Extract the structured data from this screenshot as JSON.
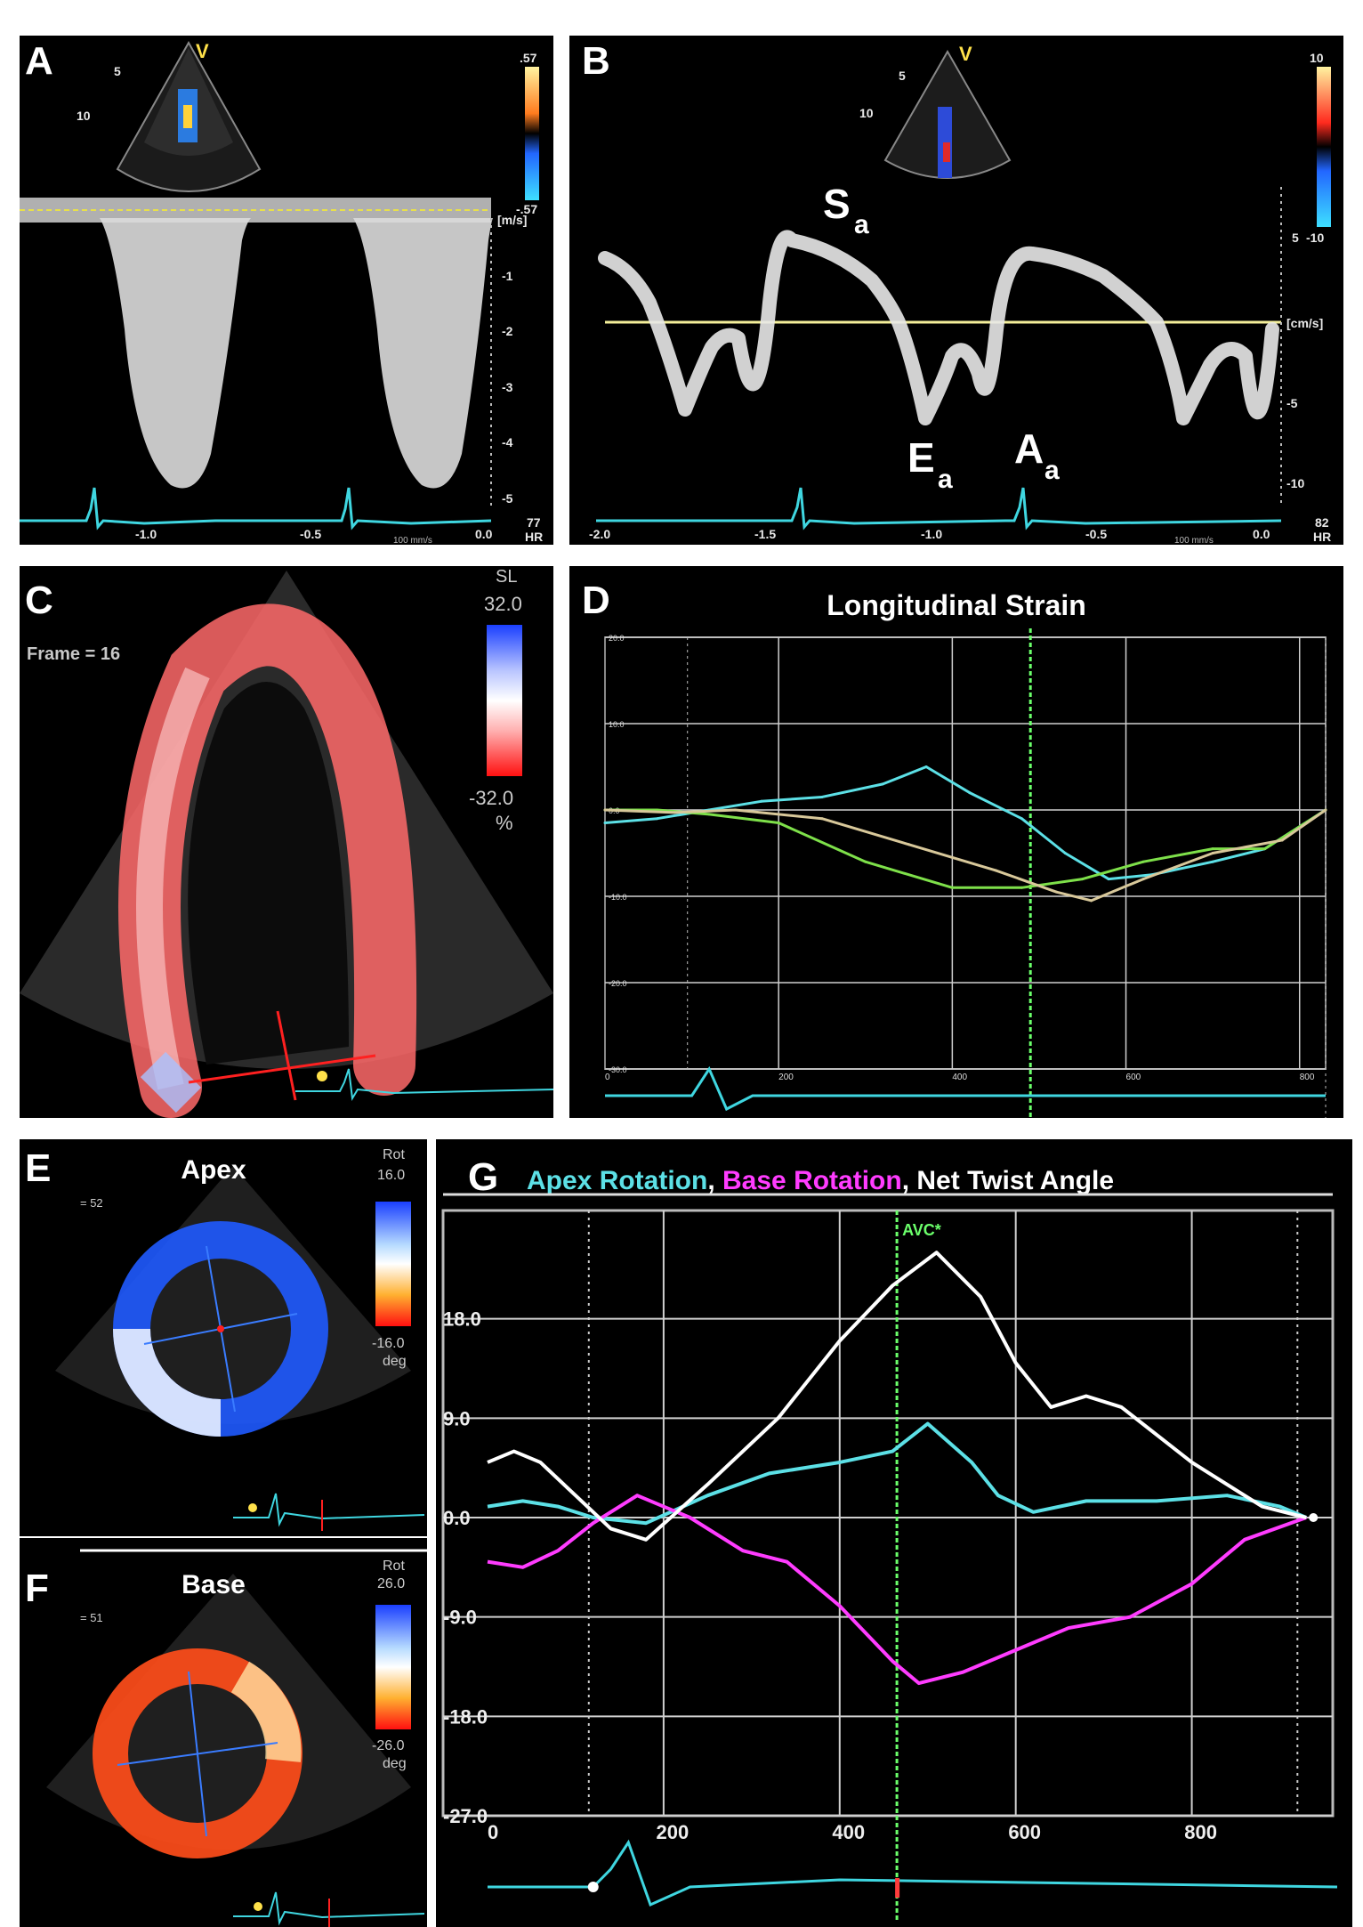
{
  "panels": {
    "a": {
      "label": "A",
      "probe_marker": "V",
      "depth_marks": [
        "5",
        "10"
      ],
      "colorbar": {
        "top": ".57",
        "bottom": "-.57"
      },
      "unit": "[m/s]",
      "y_ticks": [
        "-1",
        "-2",
        "-3",
        "-4",
        "-5"
      ],
      "x_ticks": [
        "-1.0",
        "-0.5",
        "0.0"
      ],
      "sweep": "100 mm/s",
      "hr_value": "77",
      "hr_label": "HR"
    },
    "b": {
      "label": "B",
      "probe_marker": "V",
      "depth_marks": [
        "5",
        "10"
      ],
      "colorbar": {
        "top": "10",
        "bottom": "-10"
      },
      "unit": "[cm/s]",
      "y_ticks": [
        "5",
        "-5",
        "-10"
      ],
      "x_ticks": [
        "-2.0",
        "-1.5",
        "-1.0",
        "-0.5",
        "0.0"
      ],
      "sweep": "100 mm/s",
      "hr_value": "82",
      "hr_label": "HR",
      "wave_labels": {
        "s": {
          "main": "S",
          "sub": "a"
        },
        "e": {
          "main": "E",
          "sub": "a"
        },
        "a": {
          "main": "A",
          "sub": "a"
        }
      }
    },
    "c": {
      "label": "C",
      "frame_text": "Frame = 16",
      "colorbar": {
        "title": "SL",
        "top": "32.0",
        "bottom": "-32.0",
        "unit": "%"
      }
    },
    "d": {
      "label": "D",
      "title": "Longitudinal Strain",
      "y_ticks": [
        "20.0",
        "10.0",
        "0.0",
        "-10.0",
        "-20.0",
        "-30.0"
      ],
      "x_ticks": [
        "0",
        "200",
        "400",
        "600",
        "800"
      ]
    },
    "e": {
      "label": "E",
      "title": "Apex",
      "frame_text": "= 52",
      "colorbar": {
        "title": "Rot",
        "top": "16.0",
        "bottom": "-16.0",
        "unit": "deg"
      }
    },
    "f": {
      "label": "F",
      "title": "Base",
      "frame_text": "= 51",
      "colorbar": {
        "title": "Rot",
        "top": "26.0",
        "bottom": "-26.0",
        "unit": "deg"
      }
    },
    "g": {
      "label": "G",
      "title_parts": [
        {
          "text": "Apex Rotation",
          "color": "#5ce0e6"
        },
        {
          "text": ", ",
          "color": "#ffffff"
        },
        {
          "text": "Base Rotation",
          "color": "#ff3cff"
        },
        {
          "text": ", Net Twist Angle",
          "color": "#ffffff"
        }
      ],
      "marker": "AVC*",
      "y_ticks": [
        "18.0",
        "9.0",
        "0.0",
        "-9.0",
        "-18.0",
        "-27.0"
      ],
      "x_ticks": [
        "0",
        "200",
        "400",
        "600",
        "800"
      ]
    }
  },
  "colors": {
    "ecg": "#3fd6e0",
    "cyan_curve": "#5ce0e6",
    "magenta_curve": "#ff3cff",
    "green_curve": "#7ee04a",
    "tan_curve": "#d8c89a",
    "avc_line": "#6bff6b",
    "grid": "#cfcfcf"
  },
  "chart_data": [
    {
      "type": "line",
      "panel": "D",
      "title": "Longitudinal Strain",
      "xlim": [
        0,
        830
      ],
      "ylim": [
        -30,
        20
      ],
      "grid": true,
      "series": [
        {
          "color": "#5ce0e6",
          "x": [
            0,
            60,
            120,
            180,
            250,
            320,
            370,
            420,
            480,
            530,
            580,
            630,
            700,
            760,
            830
          ],
          "y": [
            -1.5,
            -1,
            0,
            1,
            1.5,
            3,
            5,
            2,
            -1,
            -5,
            -8,
            -7.5,
            -6,
            -4.5,
            0
          ]
        },
        {
          "color": "#7ee04a",
          "x": [
            0,
            60,
            120,
            200,
            300,
            400,
            480,
            550,
            620,
            700,
            760,
            830
          ],
          "y": [
            0,
            0,
            -0.5,
            -1.5,
            -6,
            -9,
            -9,
            -8,
            -6,
            -4.5,
            -4.5,
            0
          ]
        },
        {
          "color": "#d8c89a",
          "x": [
            0,
            80,
            150,
            250,
            350,
            450,
            520,
            560,
            620,
            700,
            780,
            830
          ],
          "y": [
            0,
            -0.3,
            0,
            -1,
            -4,
            -7,
            -9.5,
            -10.5,
            -8,
            -5,
            -3.5,
            0
          ]
        }
      ]
    },
    {
      "type": "line",
      "panel": "G",
      "title": "Apex Rotation, Base Rotation, Net Twist Angle",
      "xlim": [
        0,
        950
      ],
      "ylim": [
        -27,
        27
      ],
      "grid": true,
      "series": [
        {
          "name": "Apex Rotation",
          "color": "#5ce0e6",
          "x": [
            0,
            40,
            80,
            120,
            180,
            250,
            320,
            400,
            460,
            500,
            550,
            580,
            620,
            680,
            760,
            840,
            900,
            930
          ],
          "y": [
            1,
            1.5,
            1,
            0,
            -0.5,
            2,
            4,
            5,
            6,
            8.5,
            5,
            2,
            0.5,
            1.5,
            1.5,
            2,
            1,
            0
          ]
        },
        {
          "name": "Base Rotation",
          "color": "#ff3cff",
          "x": [
            0,
            40,
            80,
            120,
            170,
            230,
            290,
            340,
            400,
            460,
            490,
            540,
            600,
            660,
            730,
            800,
            860,
            930
          ],
          "y": [
            -4,
            -4.5,
            -3,
            -0.5,
            2,
            0,
            -3,
            -4,
            -8,
            -13,
            -15,
            -14,
            -12,
            -10,
            -9,
            -6,
            -2,
            0
          ]
        },
        {
          "name": "Net Twist Angle",
          "color": "#ffffff",
          "x": [
            0,
            30,
            60,
            100,
            140,
            180,
            250,
            330,
            400,
            460,
            510,
            560,
            600,
            640,
            680,
            720,
            800,
            880,
            930
          ],
          "y": [
            5,
            6,
            5,
            2,
            -1,
            -2,
            3,
            9,
            16,
            21,
            24,
            20,
            14,
            10,
            11,
            10,
            5,
            1,
            0
          ]
        }
      ],
      "annotations": [
        {
          "text": "AVC*",
          "x": 465
        }
      ]
    }
  ]
}
